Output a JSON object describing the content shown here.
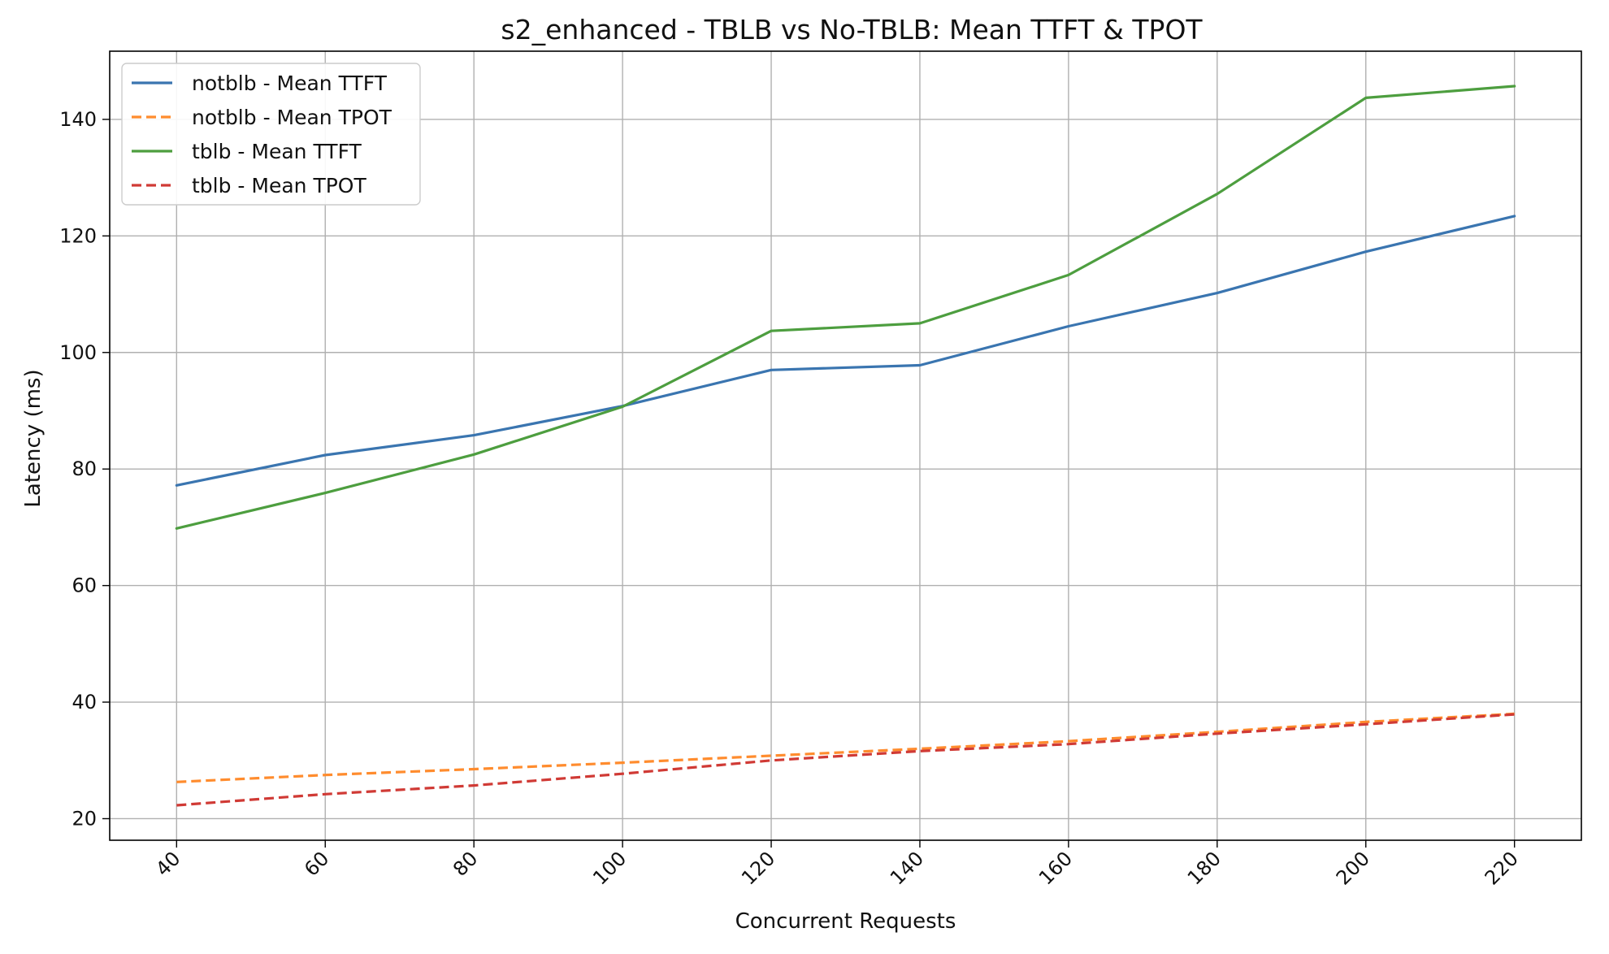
{
  "chart_data": {
    "type": "line",
    "title": "s2_enhanced - TBLB vs No-TBLB: Mean TTFT & TPOT",
    "xlabel": "Concurrent Requests",
    "ylabel": "Latency (ms)",
    "x": [
      40,
      60,
      80,
      100,
      120,
      140,
      160,
      180,
      200,
      220
    ],
    "xlim": [
      31,
      229
    ],
    "ylim": [
      16.3,
      151.7
    ],
    "xticks": [
      "40",
      "60",
      "80",
      "100",
      "120",
      "140",
      "160",
      "180",
      "200",
      "220"
    ],
    "yticks": [
      "20",
      "40",
      "60",
      "80",
      "100",
      "120",
      "140"
    ],
    "grid": true,
    "legend_position": "top-left",
    "series": [
      {
        "name": "notblb - Mean TTFT",
        "color": "#3a75b0",
        "style": "solid",
        "values": [
          77.2,
          82.4,
          85.8,
          90.8,
          97.0,
          97.8,
          104.5,
          110.2,
          117.3,
          123.4
        ]
      },
      {
        "name": "notblb - Mean TPOT",
        "color": "#ff8c2e",
        "style": "dashed",
        "values": [
          26.3,
          27.5,
          28.5,
          29.6,
          30.8,
          32.0,
          33.3,
          34.9,
          36.6,
          38.0
        ]
      },
      {
        "name": "tblb - Mean TTFT",
        "color": "#4d9e3f",
        "style": "solid",
        "values": [
          69.8,
          75.9,
          82.5,
          90.7,
          103.7,
          105.0,
          113.3,
          127.2,
          143.7,
          145.7
        ]
      },
      {
        "name": "tblb - Mean TPOT",
        "color": "#d03a35",
        "style": "dashed",
        "values": [
          22.3,
          24.2,
          25.7,
          27.7,
          30.0,
          31.6,
          32.8,
          34.6,
          36.2,
          37.9
        ]
      }
    ]
  }
}
